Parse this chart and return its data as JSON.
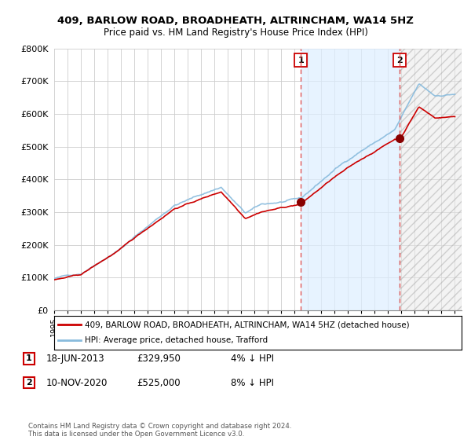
{
  "title": "409, BARLOW ROAD, BROADHEATH, ALTRINCHAM, WA14 5HZ",
  "subtitle": "Price paid vs. HM Land Registry's House Price Index (HPI)",
  "ylabel_ticks": [
    "£0",
    "£100K",
    "£200K",
    "£300K",
    "£400K",
    "£500K",
    "£600K",
    "£700K",
    "£800K"
  ],
  "ylim": [
    0,
    800000
  ],
  "xlim_start": 1995.0,
  "xlim_end": 2025.5,
  "sale1_date": 2013.46,
  "sale1_price": 329950,
  "sale2_date": 2020.86,
  "sale2_price": 525000,
  "legend_line1": "409, BARLOW ROAD, BROADHEATH, ALTRINCHAM, WA14 5HZ (detached house)",
  "legend_line2": "HPI: Average price, detached house, Trafford",
  "table_row1": [
    "1",
    "18-JUN-2013",
    "£329,950",
    "4% ↓ HPI"
  ],
  "table_row2": [
    "2",
    "10-NOV-2020",
    "£525,000",
    "8% ↓ HPI"
  ],
  "footer": "Contains HM Land Registry data © Crown copyright and database right 2024.\nThis data is licensed under the Open Government Licence v3.0.",
  "line_color_red": "#cc0000",
  "line_color_blue": "#88bbdd",
  "shade_color": "#ddeeff",
  "dashed_line_color": "#dd4444",
  "background_color": "#ffffff",
  "grid_color": "#cccccc"
}
